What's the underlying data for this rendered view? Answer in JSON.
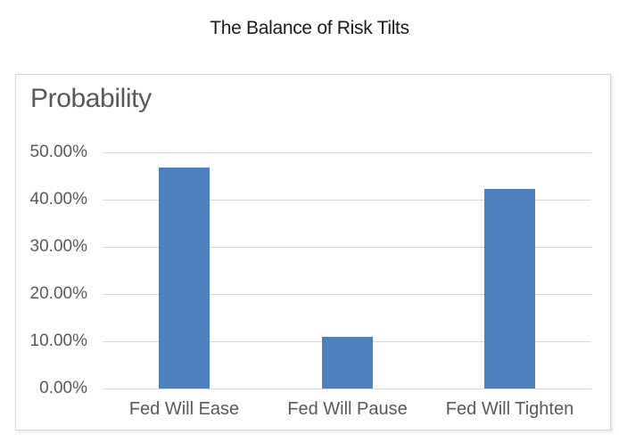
{
  "page": {
    "title": "The Balance of Risk Tilts"
  },
  "chart_data": {
    "type": "bar",
    "title": "Probability",
    "categories": [
      "Fed Will Ease",
      "Fed Will Pause",
      "Fed Will Tighten"
    ],
    "values": [
      46.8,
      11.0,
      42.2
    ],
    "value_unit": "percent",
    "xlabel": "",
    "ylabel": "",
    "ylim": [
      0,
      50
    ],
    "yticks": [
      "50.00%",
      "40.00%",
      "30.00%",
      "20.00%",
      "10.00%",
      "0.00%"
    ],
    "grid": true,
    "legend": false,
    "colors": {
      "bar": "#4e80bd",
      "gridline": "#d9d9d9",
      "axis_label": "#595959",
      "chart_title": "#595959",
      "page_title": "#1c1c1c",
      "frame_border": "#d7d7d7",
      "background": "#ffffff"
    }
  }
}
